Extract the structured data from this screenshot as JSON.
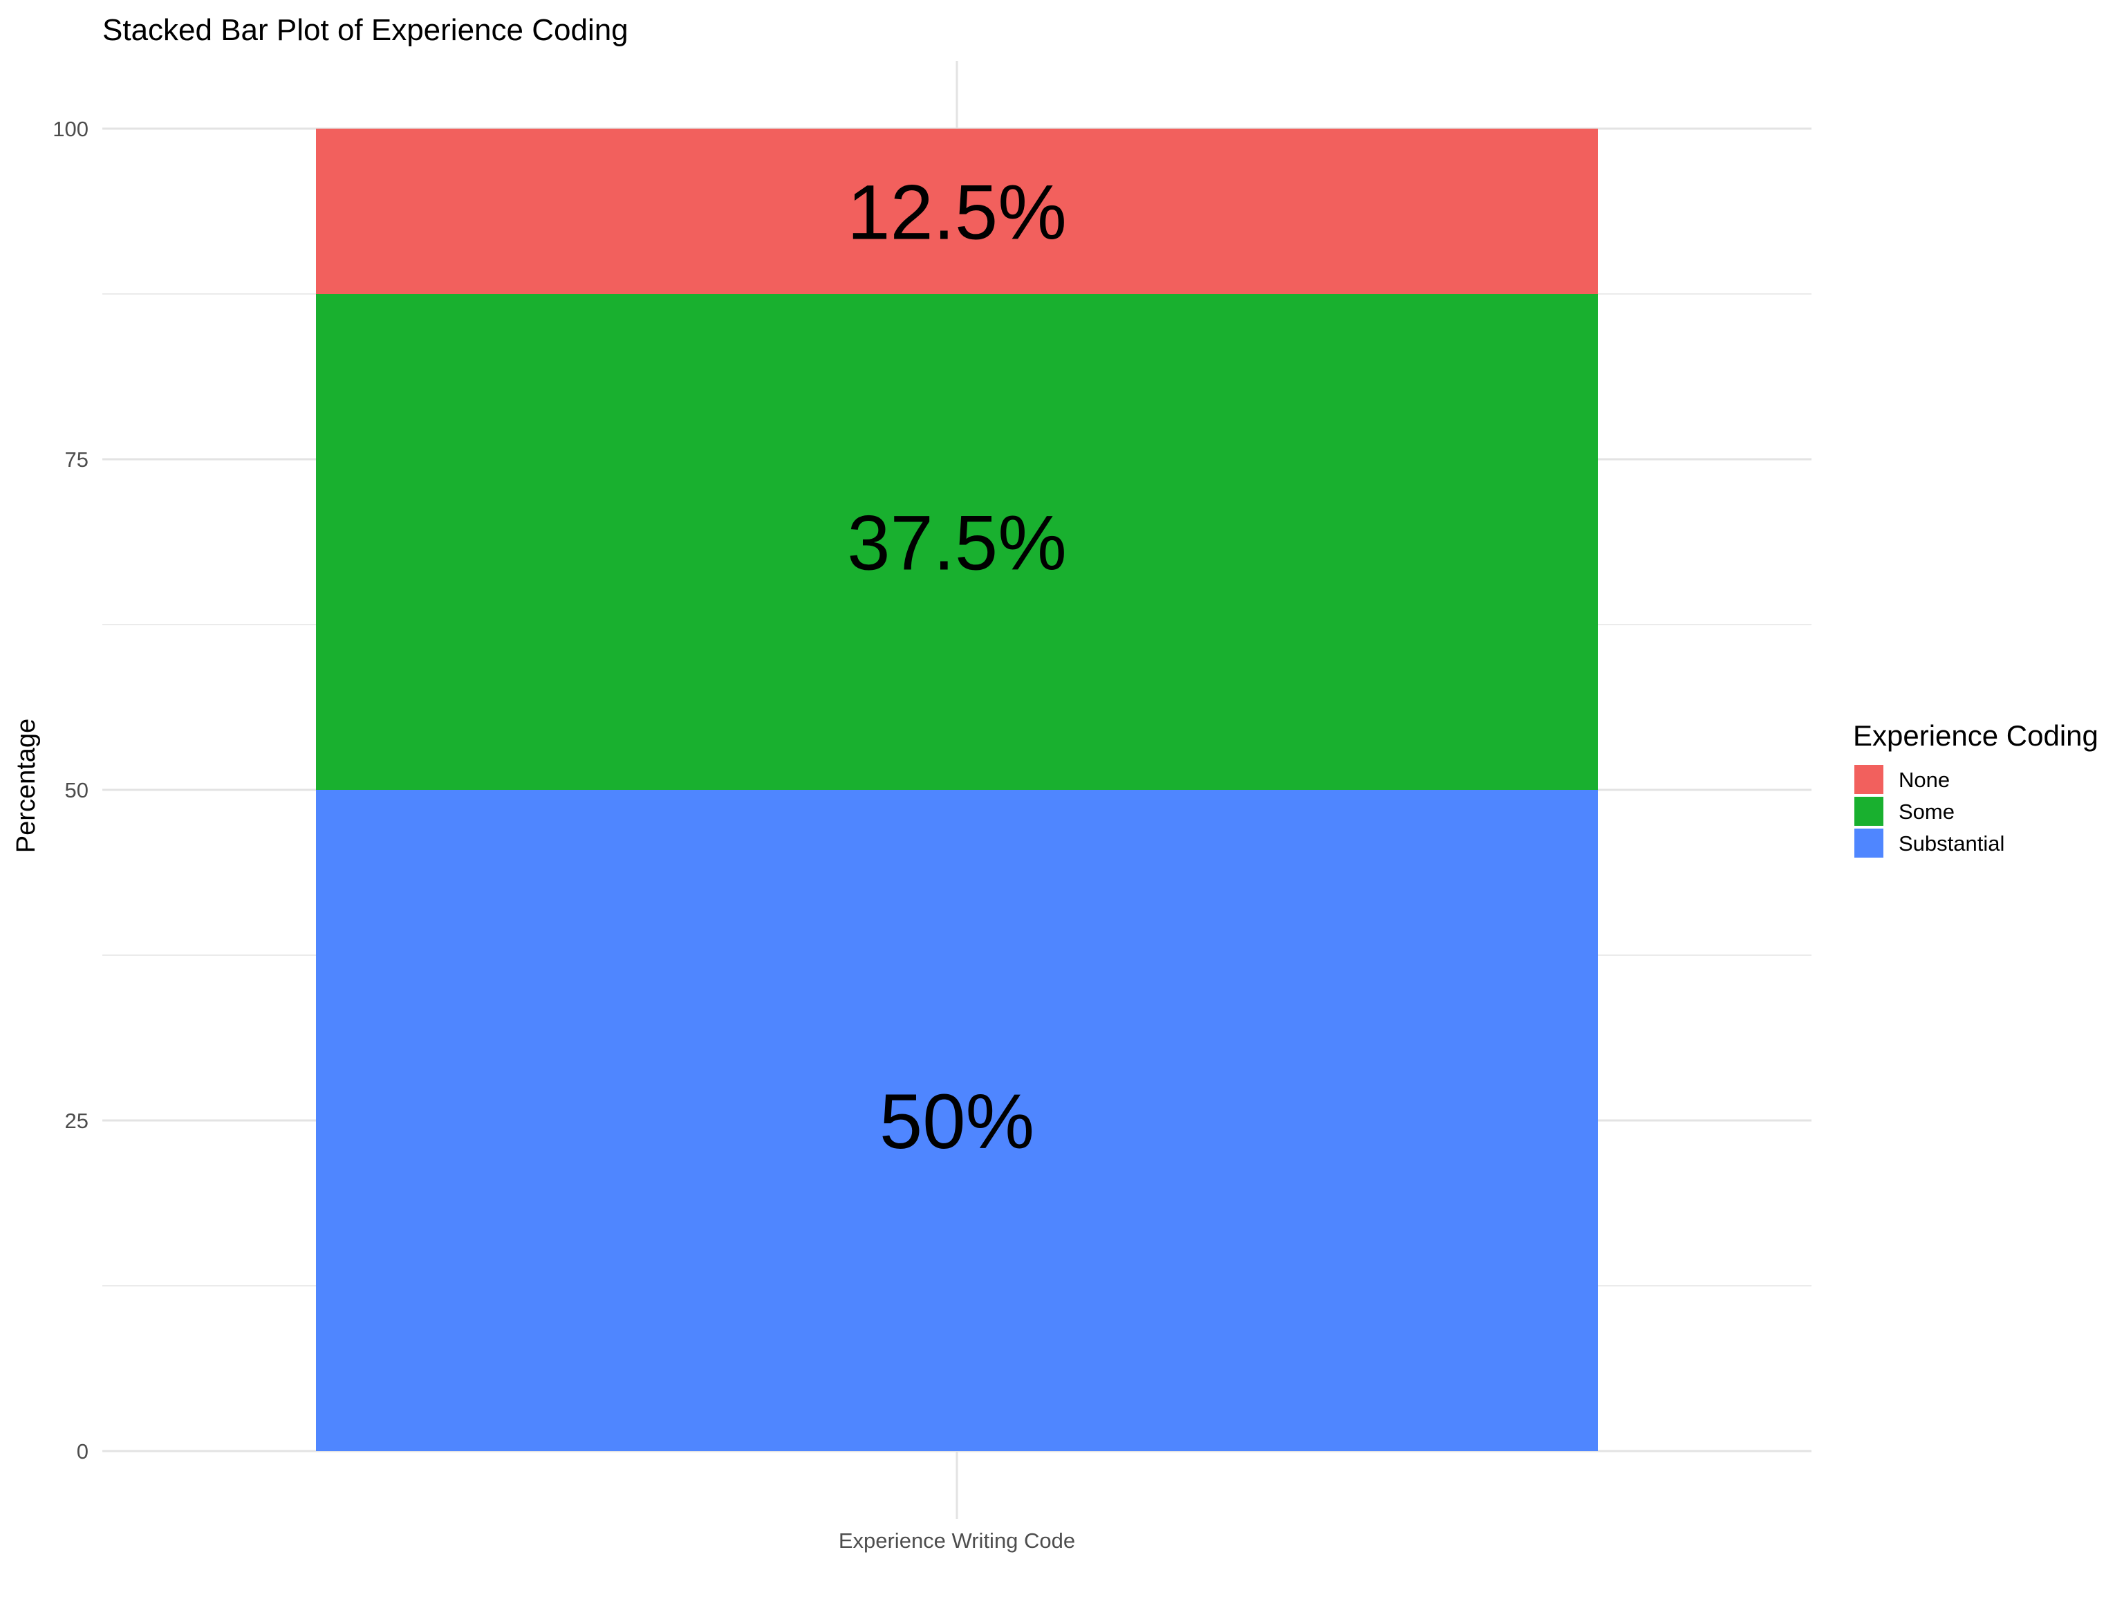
{
  "chart_data": {
    "type": "bar",
    "stacked": true,
    "title": "Stacked Bar Plot of Experience Coding",
    "xlabel": "",
    "ylabel": "Percentage",
    "categories": [
      "Experience Writing Code"
    ],
    "ylim": [
      0,
      100
    ],
    "yticks": [
      0,
      25,
      50,
      75,
      100
    ],
    "grid": true,
    "legend": {
      "title": "Experience Coding",
      "placement": "right"
    },
    "series": [
      {
        "name": "Substantial",
        "values": [
          50
        ],
        "label": "50%",
        "color": "#4F86FF"
      },
      {
        "name": "Some",
        "values": [
          37.5
        ],
        "label": "37.5%",
        "color": "#19B02F"
      },
      {
        "name": "None",
        "values": [
          12.5
        ],
        "label": "12.5%",
        "color": "#F2605D"
      }
    ],
    "legend_order": [
      "None",
      "Some",
      "Substantial"
    ]
  }
}
